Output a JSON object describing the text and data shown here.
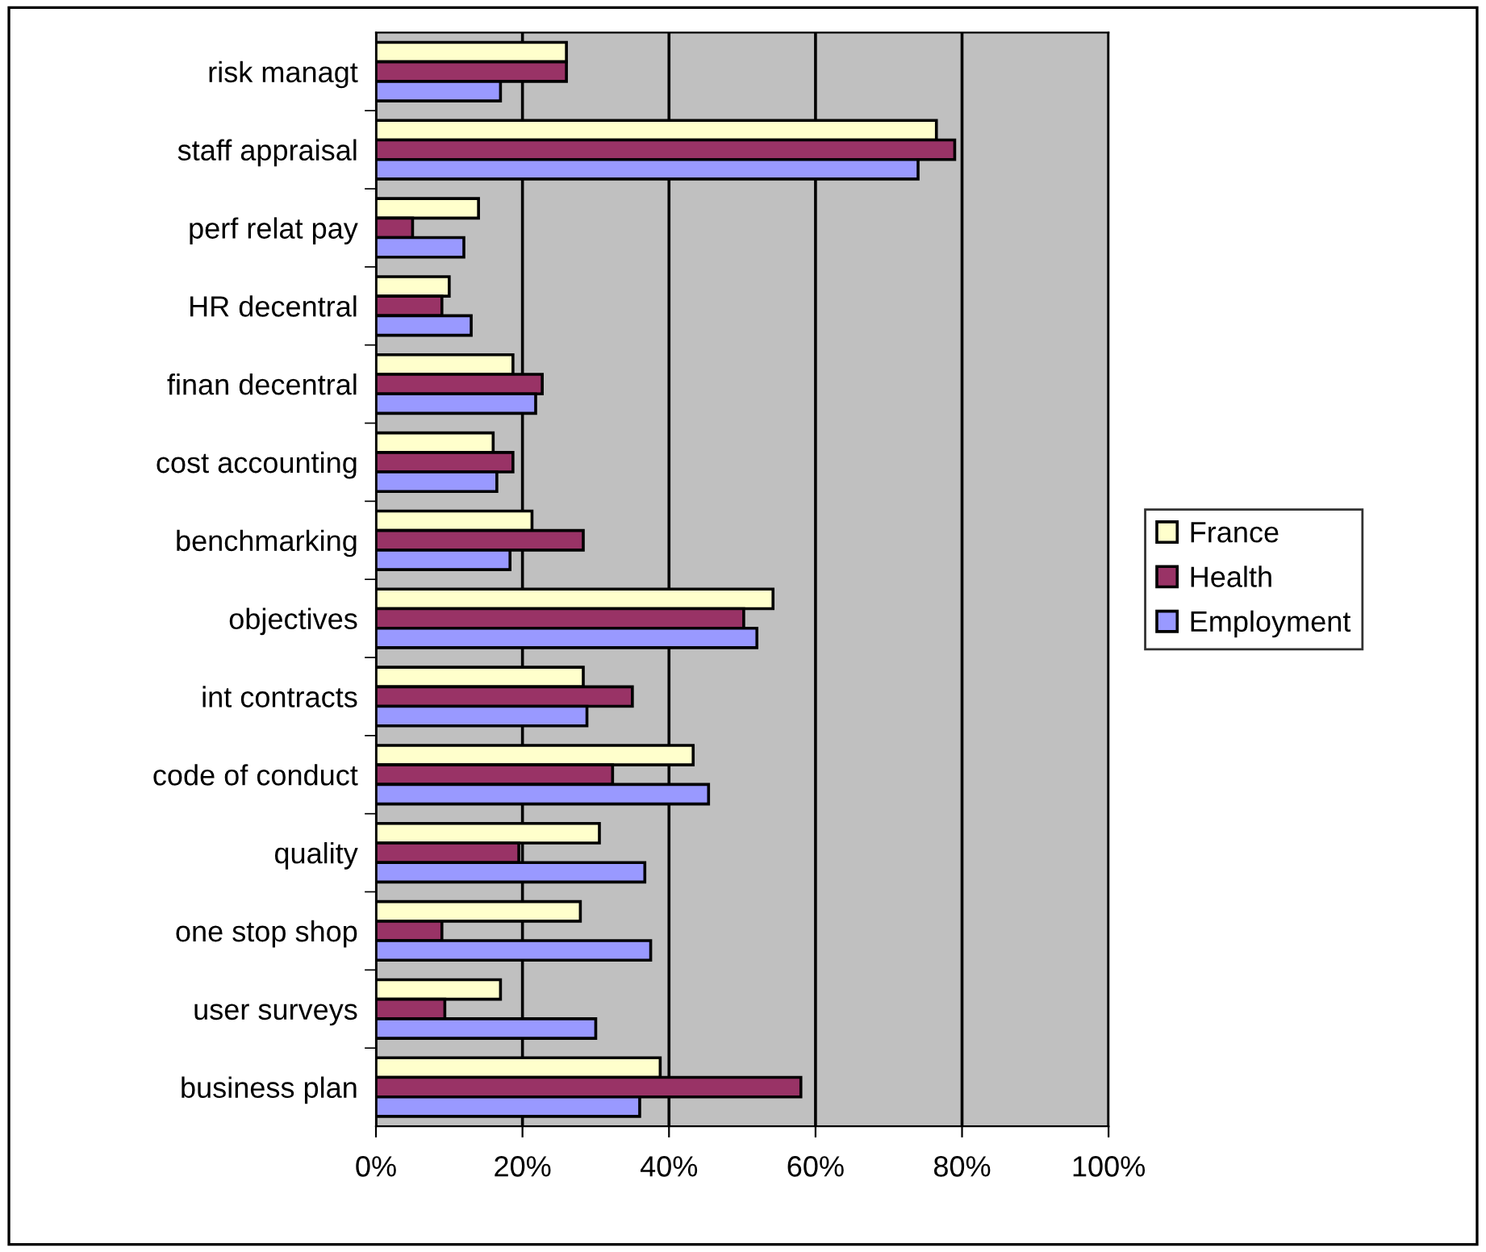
{
  "chart_data": {
    "type": "bar",
    "orientation": "horizontal",
    "categories": [
      "risk managt",
      "staff appraisal",
      "perf relat pay",
      "HR decentral",
      "finan decentral",
      "cost accounting",
      "benchmarking",
      "objectives",
      "int contracts",
      "code of conduct",
      "quality",
      "one stop shop",
      "user surveys",
      "business plan"
    ],
    "series": [
      {
        "name": "France",
        "color": "#ffffcc",
        "values": [
          26,
          76.5,
          14,
          10,
          18.7,
          16,
          21.3,
          54.2,
          28.3,
          43.3,
          30.5,
          27.9,
          17,
          38.8
        ]
      },
      {
        "name": "Health",
        "color": "#993366",
        "values": [
          26,
          79,
          5,
          9,
          22.7,
          18.7,
          28.3,
          50.2,
          35,
          32.3,
          19.5,
          9,
          9.4,
          58
        ]
      },
      {
        "name": "Employment",
        "color": "#9999ff",
        "values": [
          17,
          74,
          12,
          13,
          21.8,
          16.5,
          18.3,
          52,
          28.8,
          45.4,
          36.7,
          37.5,
          30,
          36
        ]
      }
    ],
    "xlim": [
      0,
      100
    ],
    "xticks": [
      {
        "value": 0,
        "label": "0%"
      },
      {
        "value": 20,
        "label": "20%"
      },
      {
        "value": 40,
        "label": "40%"
      },
      {
        "value": 60,
        "label": "60%"
      },
      {
        "value": 80,
        "label": "80%"
      },
      {
        "value": 100,
        "label": "100%"
      }
    ],
    "grid": "x",
    "legend": "right"
  }
}
